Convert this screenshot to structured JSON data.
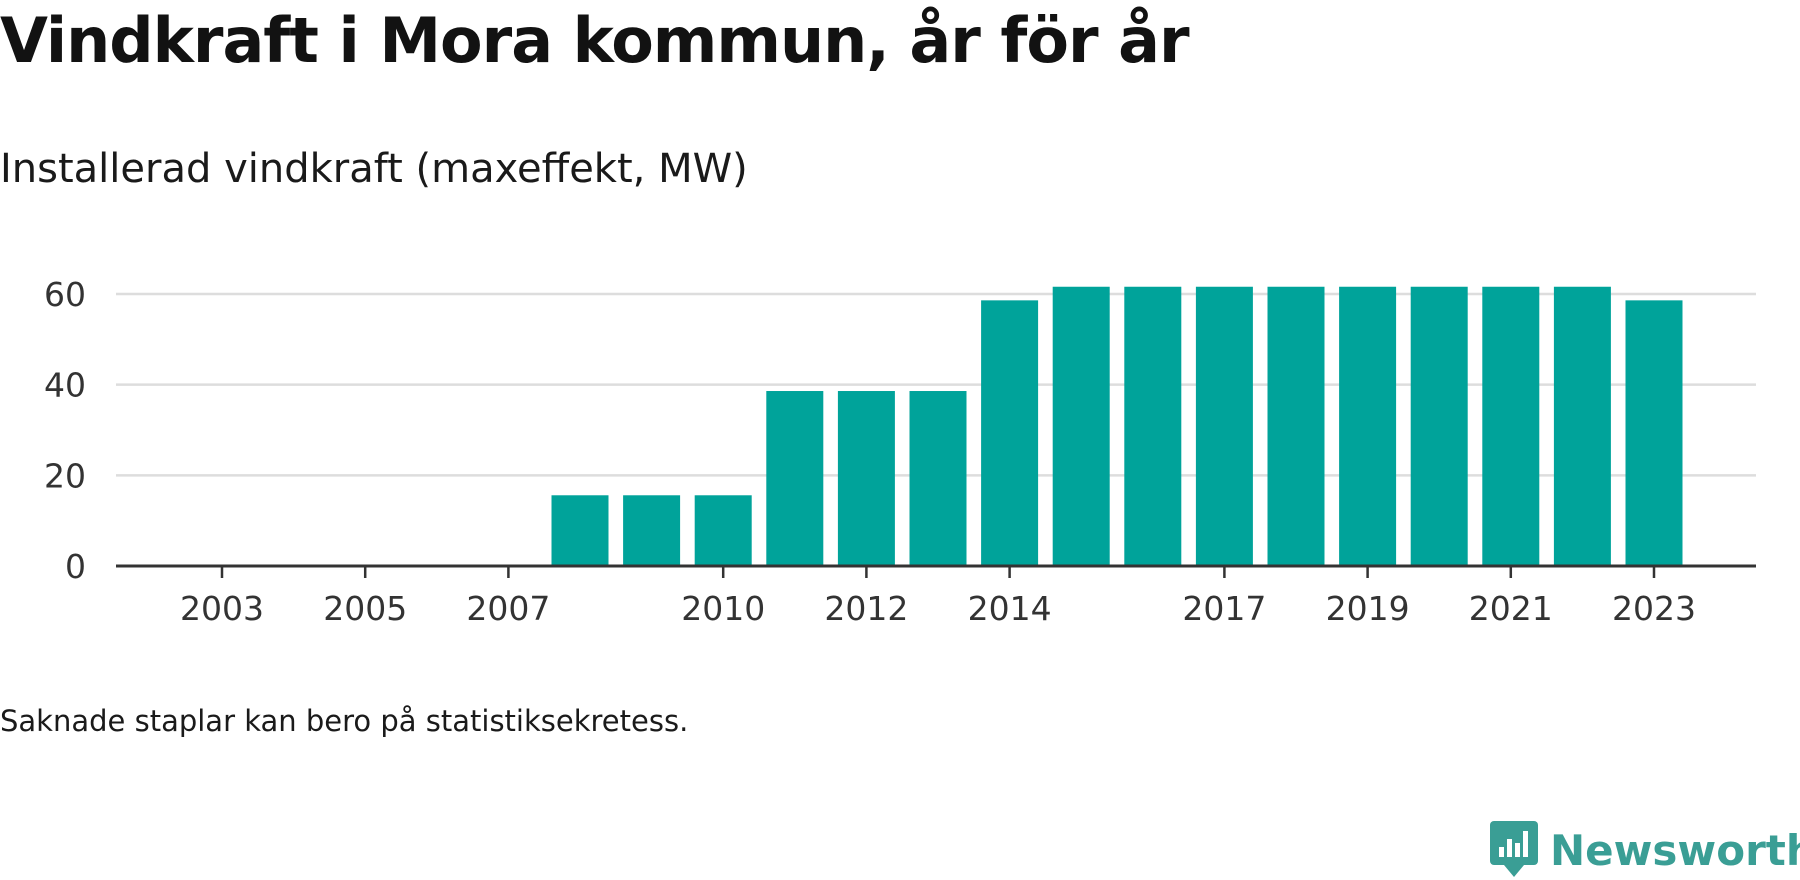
{
  "title": "Vindkraft i Mora kommun, år för år",
  "subtitle": "Installerad vindkraft (maxeffekt, MW)",
  "footnote": "Saknade staplar kan bero på statistiksekretess.",
  "brand": {
    "name": "Newsworthy",
    "icon": "newsworthy-logo-icon"
  },
  "colors": {
    "bar": "#00a39a",
    "grid": "#dddddd",
    "axis": "#333333",
    "text": "#333333",
    "brand": "#3a9e95"
  },
  "chart_data": {
    "type": "bar",
    "title": "Installerad vindkraft (maxeffekt, MW)",
    "xlabel": "",
    "ylabel": "",
    "x": [
      2003,
      2004,
      2005,
      2006,
      2007,
      2008,
      2009,
      2010,
      2011,
      2012,
      2013,
      2014,
      2015,
      2016,
      2017,
      2018,
      2019,
      2020,
      2021,
      2022,
      2023
    ],
    "values": [
      0,
      0,
      0,
      0,
      0,
      15.6,
      15.6,
      15.6,
      38.6,
      38.6,
      38.6,
      58.6,
      61.6,
      61.6,
      61.6,
      61.6,
      61.6,
      61.6,
      61.6,
      61.6,
      58.6
    ],
    "xticks": [
      "2003",
      "2005",
      "2007",
      "2010",
      "2012",
      "2014",
      "2017",
      "2019",
      "2021",
      "2023"
    ],
    "yticks": [
      "0",
      "20",
      "40",
      "60"
    ],
    "ylim": [
      0,
      60
    ],
    "grid": true
  }
}
